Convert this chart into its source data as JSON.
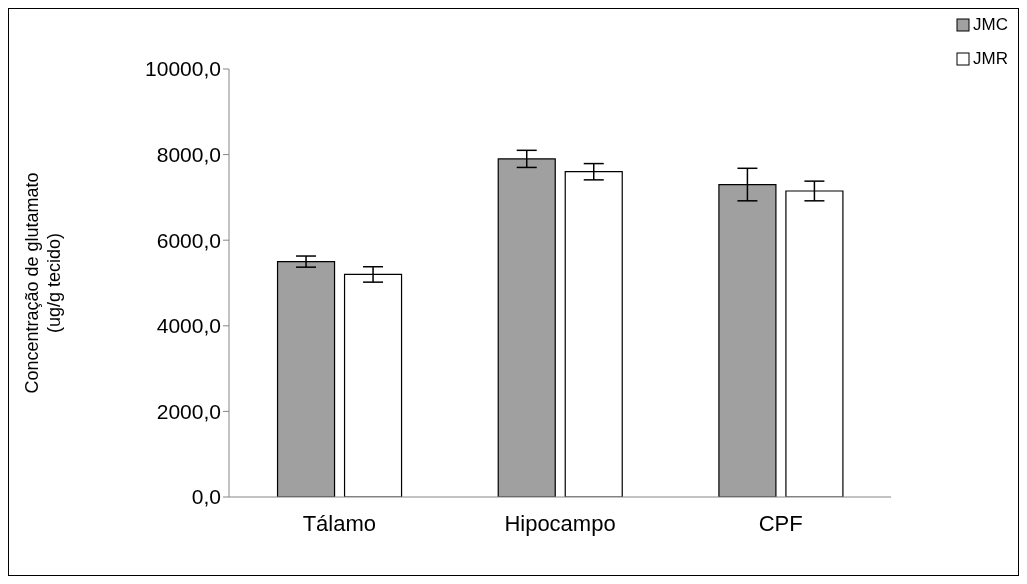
{
  "chart_data": {
    "type": "bar",
    "ylabel": "Concentração de glutamato\n(ug/g tecido)",
    "categories": [
      "Tálamo",
      "Hipocampo",
      "CPF"
    ],
    "series": [
      {
        "name": "JMC",
        "color": "#a0a0a0",
        "values": [
          5500,
          7900,
          7300
        ],
        "errors": [
          130,
          200,
          380
        ]
      },
      {
        "name": "JMR",
        "color": "#ffffff",
        "values": [
          5200,
          7600,
          7150
        ],
        "errors": [
          180,
          190,
          230
        ]
      }
    ],
    "ylim": [
      0,
      10000
    ],
    "yticks": [
      {
        "value": 0,
        "label": "0,0"
      },
      {
        "value": 2000,
        "label": "2000,0"
      },
      {
        "value": 4000,
        "label": "4000,0"
      },
      {
        "value": 6000,
        "label": "6000,0"
      },
      {
        "value": 8000,
        "label": "8000,0"
      },
      {
        "value": 10000,
        "label": "10000,0"
      }
    ],
    "grid": false,
    "legend": "top right"
  }
}
